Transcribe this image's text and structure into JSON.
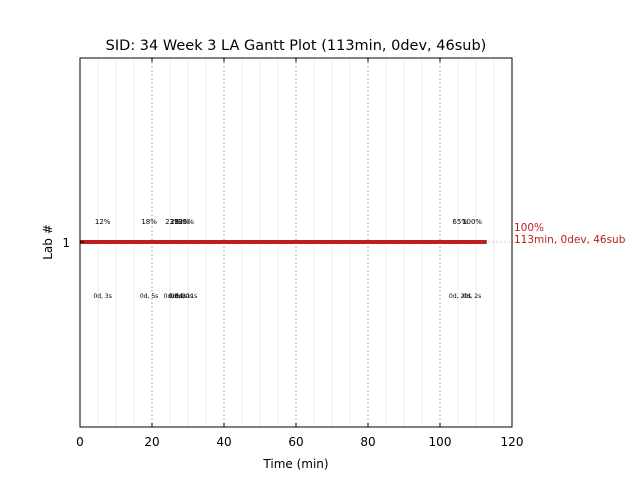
{
  "chart_data": {
    "type": "gantt",
    "title": "SID: 34 Week 3 LA Gantt Plot (113min, 0dev, 46sub)",
    "xlabel": "Time (min)",
    "ylabel": "Lab #",
    "xlim": [
      0,
      120
    ],
    "xticks": [
      0,
      20,
      40,
      60,
      80,
      100,
      120
    ],
    "yticks": [
      1
    ],
    "minor_grid_step": 5,
    "bars": [
      {
        "lab": "1",
        "start": 0,
        "end": 113,
        "color": "#bb1e1e",
        "end_label_pct": "100%",
        "end_label_summary": "113min, 0dev, 46sub"
      }
    ],
    "milestones": [
      {
        "x": 6.3,
        "pct": "12%",
        "detail": "0d, 3s"
      },
      {
        "x": 19.2,
        "pct": "18%",
        "detail": "0d, 5s"
      },
      {
        "x": 25.8,
        "pct": "23%",
        "detail": "0d, 8s"
      },
      {
        "x": 27.2,
        "pct": "28%",
        "detail": "0d, 9s"
      },
      {
        "x": 28.3,
        "pct": "32%",
        "detail": "0d, 10s"
      },
      {
        "x": 29.5,
        "pct": "35%",
        "detail": "0d, 11s"
      },
      {
        "x": 105.6,
        "pct": "65%",
        "detail": "0d, 20s"
      },
      {
        "x": 108.9,
        "pct": "100%",
        "detail": "0d, 2s"
      }
    ]
  }
}
